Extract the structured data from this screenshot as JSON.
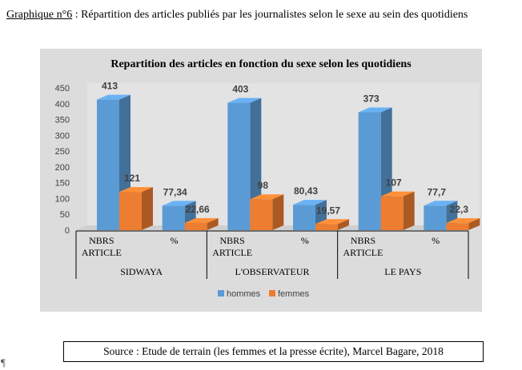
{
  "caption": {
    "label": "Graphique n°6",
    "text": " : Répartition des articles publiés par les journalistes selon le sexe au sein des quotidiens"
  },
  "chart_data": {
    "type": "bar",
    "title": "Repartition des articles en fonction du sexe selon les quotidiens",
    "groups": [
      "SIDWAYA",
      "L'OBSERVATEUR",
      "LE PAYS"
    ],
    "sub_categories": [
      "NBRS ARTICLE",
      "%"
    ],
    "sub_category_lines": [
      [
        "NBRS",
        "ARTICLE"
      ],
      [
        "%"
      ]
    ],
    "categories": [
      "SIDWAYA NBRS ARTICLE",
      "SIDWAYA %",
      "L'OBSERVATEUR NBRS ARTICLE",
      "L'OBSERVATEUR %",
      "LE PAYS NBRS ARTICLE",
      "LE PAYS %"
    ],
    "series": [
      {
        "name": "hommes",
        "color": "#5b9bd5",
        "values": [
          413,
          77.34,
          403,
          80.43,
          373,
          77.7
        ],
        "labels": [
          "413",
          "77,34",
          "403",
          "80,43",
          "373",
          "77,7"
        ]
      },
      {
        "name": "femmes",
        "color": "#ed7d31",
        "values": [
          121,
          22.66,
          98,
          19.57,
          107,
          22.3
        ],
        "labels": [
          "121",
          "22,66",
          "98",
          "19,57",
          "107",
          "22,3"
        ]
      }
    ],
    "ylim": [
      0,
      450
    ],
    "yticks": [
      "0",
      "50",
      "100",
      "150",
      "200",
      "250",
      "300",
      "350",
      "400",
      "450"
    ],
    "grid": false,
    "legend_position": "bottom"
  },
  "footer": {
    "source": "Source : Etude de terrain (les femmes et la presse écrite), Marcel Bagare, 2018",
    "pilcrow": "¶"
  }
}
